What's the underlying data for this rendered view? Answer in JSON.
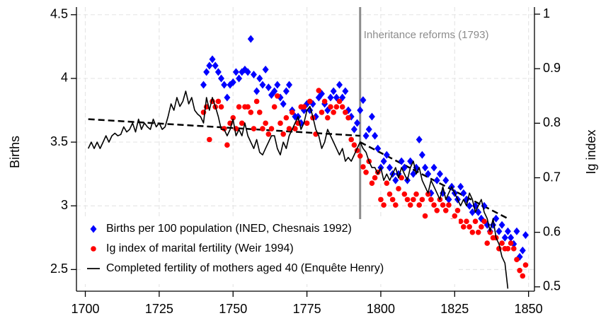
{
  "chart_data": {
    "type": "scatter",
    "xlim": [
      1697,
      1852
    ],
    "xticks": [
      1700,
      1725,
      1750,
      1775,
      1800,
      1825,
      1850
    ],
    "ylim": [
      2.33,
      4.56
    ],
    "yticks": [
      2.5,
      3.0,
      3.5,
      4.0,
      4.5
    ],
    "y2lim": [
      0.492,
      1.013
    ],
    "y2ticks": [
      0.5,
      0.6,
      0.7,
      0.8,
      0.9,
      1.0
    ],
    "ylabel": "Births",
    "y2label": "Ig index",
    "grid": true,
    "legend": "bottom-left",
    "annotation": {
      "text": "Inheritance reforms (1793)",
      "x": 1793,
      "color": "#8c8c8c"
    },
    "series": [
      {
        "name": "Births per 100 population (INED, Chesnais 1992)",
        "color": "#0000ff",
        "marker": "diamond",
        "x": [
          1740,
          1741,
          1742,
          1743,
          1744,
          1745,
          1746,
          1747,
          1748,
          1749,
          1750,
          1751,
          1752,
          1753,
          1754,
          1755,
          1756,
          1757,
          1758,
          1759,
          1760,
          1761,
          1762,
          1763,
          1764,
          1765,
          1766,
          1767,
          1768,
          1769,
          1770,
          1771,
          1772,
          1773,
          1774,
          1775,
          1776,
          1777,
          1778,
          1779,
          1780,
          1781,
          1782,
          1783,
          1784,
          1785,
          1786,
          1787,
          1788,
          1789,
          1790,
          1791,
          1792,
          1793,
          1794,
          1795,
          1796,
          1797,
          1798,
          1799,
          1800,
          1801,
          1802,
          1803,
          1804,
          1805,
          1806,
          1807,
          1808,
          1809,
          1810,
          1811,
          1812,
          1813,
          1814,
          1815,
          1816,
          1817,
          1818,
          1819,
          1820,
          1821,
          1822,
          1823,
          1824,
          1825,
          1826,
          1827,
          1828,
          1829,
          1830,
          1831,
          1832,
          1833,
          1834,
          1835,
          1836,
          1837,
          1838,
          1839,
          1840,
          1841,
          1842,
          1843,
          1844,
          1845,
          1846,
          1847,
          1848,
          1849
        ],
        "values": [
          3.95,
          4.05,
          4.1,
          4.15,
          4.1,
          4.05,
          4.0,
          3.95,
          3.85,
          3.95,
          3.97,
          4.05,
          4.0,
          4.05,
          4.07,
          4.05,
          4.31,
          4.03,
          3.9,
          4.0,
          3.95,
          4.07,
          3.93,
          3.87,
          3.9,
          3.95,
          3.85,
          3.8,
          3.9,
          3.95,
          3.75,
          3.7,
          3.7,
          3.65,
          3.75,
          3.8,
          3.75,
          3.8,
          3.7,
          3.85,
          3.88,
          3.8,
          3.75,
          3.85,
          3.9,
          3.85,
          3.95,
          3.85,
          3.9,
          3.75,
          3.7,
          3.6,
          3.65,
          3.75,
          3.83,
          3.55,
          3.6,
          3.7,
          3.55,
          3.45,
          3.3,
          3.35,
          3.4,
          3.3,
          3.25,
          3.2,
          3.25,
          3.35,
          3.3,
          3.2,
          3.35,
          3.25,
          3.3,
          3.52,
          3.4,
          3.3,
          3.25,
          3.1,
          3.3,
          3.2,
          3.25,
          3.1,
          3.2,
          3.05,
          3.15,
          3.1,
          3.05,
          3.15,
          3.1,
          3.05,
          3.0,
          2.95,
          3.0,
          2.95,
          2.9,
          3.0,
          2.85,
          2.8,
          2.85,
          2.9,
          2.8,
          2.85,
          2.75,
          2.8,
          2.75,
          2.7,
          2.8,
          2.6,
          2.65,
          2.77
        ]
      },
      {
        "name": "Ig index of marital fertility (Weir 1994)",
        "color": "#ff0000",
        "marker": "circle",
        "axis": "y2",
        "x": [
          1740,
          1741,
          1742,
          1743,
          1744,
          1745,
          1746,
          1747,
          1748,
          1749,
          1750,
          1751,
          1752,
          1753,
          1754,
          1755,
          1756,
          1757,
          1758,
          1759,
          1760,
          1761,
          1762,
          1763,
          1764,
          1765,
          1766,
          1767,
          1768,
          1769,
          1770,
          1771,
          1772,
          1773,
          1774,
          1775,
          1776,
          1777,
          1778,
          1779,
          1780,
          1781,
          1782,
          1783,
          1784,
          1785,
          1786,
          1787,
          1788,
          1789,
          1790,
          1791,
          1792,
          1793,
          1794,
          1795,
          1796,
          1797,
          1798,
          1799,
          1800,
          1801,
          1802,
          1803,
          1804,
          1805,
          1806,
          1807,
          1808,
          1809,
          1810,
          1811,
          1812,
          1813,
          1814,
          1815,
          1816,
          1817,
          1818,
          1819,
          1820,
          1821,
          1822,
          1823,
          1824,
          1825,
          1826,
          1827,
          1828,
          1829,
          1830,
          1831,
          1832,
          1833,
          1834,
          1835,
          1836,
          1837,
          1838,
          1839,
          1840,
          1841,
          1842,
          1843,
          1844,
          1845,
          1846,
          1847,
          1848,
          1849
        ],
        "values": [
          0.82,
          0.83,
          0.77,
          0.84,
          0.83,
          0.84,
          0.83,
          0.79,
          0.76,
          0.8,
          0.81,
          0.79,
          0.83,
          0.8,
          0.83,
          0.83,
          0.82,
          0.79,
          0.84,
          0.82,
          0.79,
          0.8,
          0.78,
          0.79,
          0.83,
          0.85,
          0.8,
          0.78,
          0.81,
          0.79,
          0.82,
          0.79,
          0.8,
          0.83,
          0.83,
          0.8,
          0.84,
          0.81,
          0.78,
          0.86,
          0.82,
          0.84,
          0.81,
          0.83,
          0.82,
          0.83,
          0.84,
          0.83,
          0.82,
          0.81,
          0.77,
          0.76,
          0.75,
          0.74,
          0.72,
          0.71,
          0.73,
          0.69,
          0.7,
          0.71,
          0.66,
          0.65,
          0.69,
          0.67,
          0.66,
          0.65,
          0.68,
          0.7,
          0.67,
          0.66,
          0.65,
          0.66,
          0.67,
          0.65,
          0.66,
          0.63,
          0.67,
          0.66,
          0.65,
          0.64,
          0.66,
          0.65,
          0.64,
          0.65,
          0.62,
          0.63,
          0.64,
          0.62,
          0.61,
          0.62,
          0.61,
          0.6,
          0.62,
          0.6,
          0.61,
          0.62,
          0.58,
          0.6,
          0.59,
          0.59,
          0.57,
          0.58,
          0.57,
          0.57,
          0.58,
          0.57,
          0.55,
          0.53,
          0.52,
          0.54
        ]
      },
      {
        "name": "Completed fertility of mothers aged 40 (Enquête Henry)",
        "color": "#000000",
        "marker": "line",
        "x": [
          1701,
          1702,
          1703,
          1704,
          1705,
          1706,
          1707,
          1708,
          1709,
          1710,
          1711,
          1712,
          1713,
          1714,
          1715,
          1716,
          1717,
          1718,
          1719,
          1720,
          1721,
          1722,
          1723,
          1724,
          1725,
          1726,
          1727,
          1728,
          1729,
          1730,
          1731,
          1732,
          1733,
          1734,
          1735,
          1736,
          1737,
          1738,
          1739,
          1740,
          1741,
          1742,
          1743,
          1744,
          1745,
          1746,
          1747,
          1748,
          1749,
          1750,
          1751,
          1752,
          1753,
          1754,
          1755,
          1756,
          1757,
          1758,
          1759,
          1760,
          1761,
          1762,
          1763,
          1764,
          1765,
          1766,
          1767,
          1768,
          1769,
          1770,
          1771,
          1772,
          1773,
          1774,
          1775,
          1776,
          1777,
          1778,
          1779,
          1780,
          1781,
          1782,
          1783,
          1784,
          1785,
          1786,
          1787,
          1788,
          1789,
          1790,
          1791,
          1792,
          1793,
          1794,
          1795,
          1796,
          1797,
          1798,
          1799,
          1800,
          1801,
          1802,
          1803,
          1804,
          1805,
          1806,
          1807,
          1808,
          1809,
          1810,
          1811,
          1812,
          1813,
          1814,
          1815,
          1816,
          1817,
          1818,
          1819,
          1820,
          1821,
          1822,
          1823,
          1824,
          1825,
          1826,
          1827,
          1828,
          1829,
          1830,
          1831,
          1832,
          1833,
          1834,
          1835,
          1836,
          1837,
          1838,
          1839,
          1840,
          1841,
          1842,
          1843
        ],
        "values": [
          3.45,
          3.5,
          3.45,
          3.5,
          3.45,
          3.5,
          3.55,
          3.5,
          3.55,
          3.57,
          3.55,
          3.56,
          3.62,
          3.58,
          3.6,
          3.65,
          3.58,
          3.68,
          3.6,
          3.65,
          3.62,
          3.6,
          3.68,
          3.62,
          3.65,
          3.6,
          3.62,
          3.7,
          3.8,
          3.75,
          3.85,
          3.78,
          3.82,
          3.9,
          3.8,
          3.85,
          3.75,
          3.72,
          3.7,
          3.65,
          3.85,
          3.75,
          3.85,
          3.78,
          3.7,
          3.6,
          3.6,
          3.55,
          3.6,
          3.68,
          3.55,
          3.6,
          3.55,
          3.65,
          3.55,
          3.5,
          3.45,
          3.52,
          3.42,
          3.4,
          3.45,
          3.5,
          3.55,
          3.55,
          3.45,
          3.4,
          3.5,
          3.45,
          3.55,
          3.6,
          3.65,
          3.7,
          3.6,
          3.65,
          3.75,
          3.78,
          3.7,
          3.6,
          3.55,
          3.45,
          3.5,
          3.6,
          3.55,
          3.5,
          3.45,
          3.4,
          3.45,
          3.35,
          3.38,
          3.35,
          3.4,
          3.45,
          3.5,
          3.45,
          3.42,
          3.35,
          3.3,
          3.3,
          3.25,
          3.3,
          3.2,
          3.25,
          3.2,
          3.25,
          3.3,
          3.22,
          3.3,
          3.25,
          3.2,
          3.3,
          3.35,
          3.25,
          3.3,
          3.2,
          3.15,
          3.1,
          3.2,
          3.15,
          3.1,
          3.05,
          3.15,
          3.05,
          3.1,
          3.15,
          3.1,
          3.05,
          3.0,
          3.05,
          3.0,
          3.1,
          3.05,
          2.95,
          3.0,
          3.05,
          2.95,
          2.9,
          2.8,
          2.9,
          2.75,
          2.7,
          2.6,
          2.55,
          2.35
        ]
      }
    ],
    "trend_lines": [
      {
        "color": "#000000",
        "x": [
          1701,
          1793
        ],
        "values": [
          3.68,
          3.55
        ]
      },
      {
        "color": "#000000",
        "x": [
          1793,
          1843
        ],
        "values": [
          3.5,
          2.9
        ]
      }
    ]
  }
}
